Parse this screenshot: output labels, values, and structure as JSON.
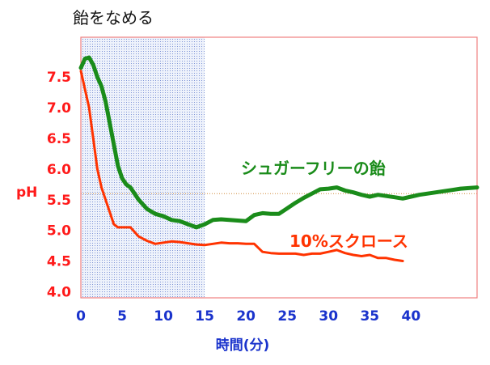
{
  "chart_data": {
    "type": "line",
    "title": "飴をなめる",
    "xlabel": "時間(分)",
    "ylabel": "pH",
    "xlim": [
      0,
      48
    ],
    "ylim": [
      3.9,
      8.15
    ],
    "x_ticks": [
      "0",
      "5",
      "10",
      "15",
      "20",
      "25",
      "30",
      "35",
      "40"
    ],
    "y_ticks": [
      "4.0",
      "4.5",
      "5.0",
      "5.5",
      "6.0",
      "6.5",
      "7.0",
      "7.5"
    ],
    "shaded_region_x": [
      0,
      15
    ],
    "reference_line_y": 5.6,
    "series": [
      {
        "name": "シュガーフリーの飴",
        "color": "#1a8c1a",
        "x": [
          0,
          0.5,
          1,
          1.5,
          2,
          2.5,
          3,
          3.5,
          4,
          4.5,
          5,
          5.5,
          6,
          6.5,
          7,
          8,
          9,
          10,
          11,
          12,
          13,
          14,
          15,
          16,
          17,
          18,
          19,
          20,
          21,
          22,
          23,
          24,
          25,
          26,
          27,
          28,
          29,
          30,
          31,
          32,
          33,
          34,
          35,
          36,
          37,
          38,
          39,
          40,
          41,
          42,
          43,
          44,
          45,
          46,
          47,
          48
        ],
        "values": [
          7.65,
          7.8,
          7.82,
          7.7,
          7.5,
          7.35,
          7.1,
          6.75,
          6.4,
          6.05,
          5.85,
          5.75,
          5.7,
          5.6,
          5.5,
          5.35,
          5.27,
          5.23,
          5.17,
          5.15,
          5.1,
          5.05,
          5.1,
          5.17,
          5.18,
          5.17,
          5.16,
          5.15,
          5.25,
          5.28,
          5.27,
          5.27,
          5.36,
          5.45,
          5.53,
          5.6,
          5.67,
          5.68,
          5.7,
          5.65,
          5.62,
          5.58,
          5.55,
          5.58,
          5.56,
          5.54,
          5.52,
          5.55,
          5.58,
          5.6,
          5.62,
          5.64,
          5.66,
          5.68,
          5.69,
          5.7
        ]
      },
      {
        "name": "10%スクロース",
        "color": "#ff3300",
        "x": [
          0,
          1,
          1.5,
          2,
          2.5,
          3,
          4,
          4.5,
          5,
          6,
          7,
          8,
          9,
          10,
          11,
          12,
          13,
          14,
          15,
          16,
          17,
          18,
          19,
          20,
          21,
          22,
          23,
          24,
          25,
          26,
          27,
          28,
          29,
          30,
          31,
          32,
          33,
          34,
          35,
          36,
          37,
          38,
          39
        ],
        "values": [
          7.6,
          7.0,
          6.5,
          6.0,
          5.7,
          5.5,
          5.1,
          5.05,
          5.05,
          5.05,
          4.9,
          4.83,
          4.78,
          4.8,
          4.82,
          4.81,
          4.79,
          4.77,
          4.76,
          4.78,
          4.8,
          4.79,
          4.79,
          4.78,
          4.78,
          4.65,
          4.63,
          4.62,
          4.62,
          4.62,
          4.6,
          4.62,
          4.62,
          4.65,
          4.68,
          4.63,
          4.6,
          4.58,
          4.6,
          4.55,
          4.55,
          4.52,
          4.5
        ]
      }
    ]
  }
}
